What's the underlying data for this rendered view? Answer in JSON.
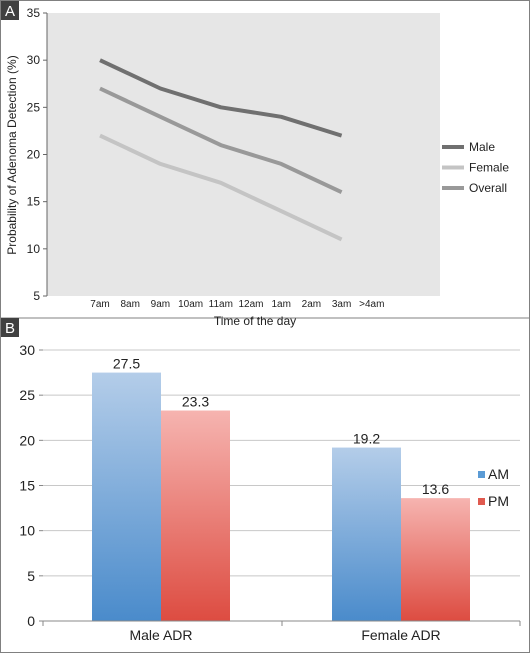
{
  "chart_data": [
    {
      "panel_label": "A",
      "type": "line",
      "xlabel": "Time of the day",
      "ylabel": "Probability of Adenoma Detection (%)",
      "ylim": [
        5,
        35
      ],
      "yticks": [
        5,
        10,
        15,
        20,
        25,
        30,
        35
      ],
      "categories": [
        "7am",
        "8am",
        "9am",
        "10am",
        "11am",
        "12am",
        "1am",
        "2am",
        "3am",
        ">4am"
      ],
      "grid": false,
      "legend_position": "right",
      "plot_background": "#e6e6e6",
      "series": [
        {
          "name": "Male",
          "color": "#707070",
          "points": [
            [
              0,
              30
            ],
            [
              2,
              27
            ],
            [
              3,
              26
            ],
            [
              4,
              25
            ],
            [
              6,
              24
            ],
            [
              8,
              22
            ]
          ]
        },
        {
          "name": "Female",
          "color": "#c4c4c4",
          "points": [
            [
              0,
              22
            ],
            [
              2,
              19
            ],
            [
              4,
              17
            ],
            [
              6,
              14
            ],
            [
              8,
              11
            ]
          ]
        },
        {
          "name": "Overall",
          "color": "#999999",
          "points": [
            [
              0,
              27
            ],
            [
              2,
              24
            ],
            [
              4,
              21
            ],
            [
              6,
              19
            ],
            [
              8,
              16
            ]
          ]
        }
      ]
    },
    {
      "panel_label": "B",
      "type": "bar",
      "categories": [
        "Male ADR",
        "Female ADR"
      ],
      "ylim": [
        0,
        30
      ],
      "yticks": [
        0,
        5,
        10,
        15,
        20,
        25,
        30
      ],
      "grid": true,
      "legend_position": "right",
      "series": [
        {
          "name": "AM",
          "color": "#5b9bd5",
          "values": [
            27.5,
            19.2
          ],
          "value_labels": [
            "27.5",
            "19.2"
          ]
        },
        {
          "name": "PM",
          "color": "#e05a4f",
          "values": [
            23.3,
            13.6
          ],
          "value_labels": [
            "23.3",
            "13.6"
          ]
        }
      ]
    }
  ]
}
